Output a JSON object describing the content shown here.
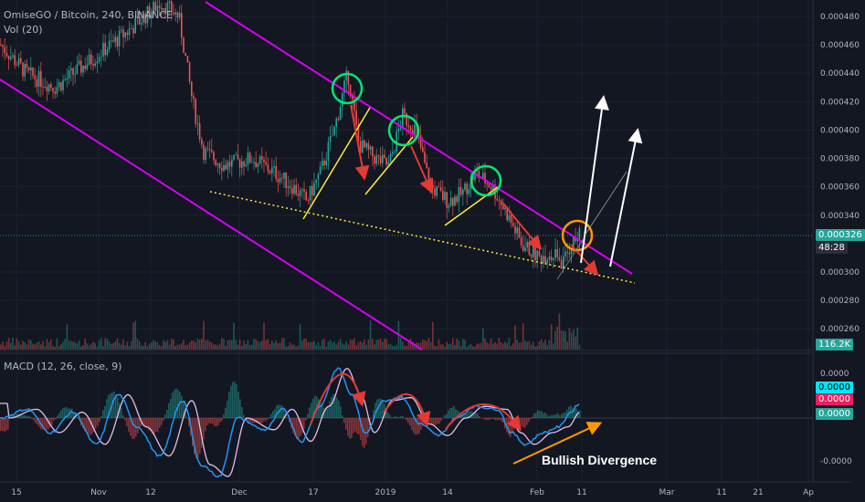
{
  "header": {
    "symbol_line": "OmiseGO / Bitcoin, 240, BINANCE",
    "volume_line": "Vol (20)"
  },
  "macd_legend": "MACD (12, 26, close, 9)",
  "price_axis": {
    "labels": [
      "0.000480",
      "0.000460",
      "0.000440",
      "0.000420",
      "0.000400",
      "0.000380",
      "0.000360",
      "0.000340",
      "0.000300",
      "0.000280",
      "0.000260"
    ],
    "last_price": "0.000326",
    "countdown": "48:28",
    "volume_tag": "116.2K"
  },
  "macd_axis": {
    "labels": [
      "0.0000",
      "-0.0000"
    ],
    "tags": [
      "0.0000",
      "0.0000",
      "0.0000"
    ]
  },
  "time_axis": {
    "labels": [
      "15",
      "Nov",
      "12",
      "Dec",
      "17",
      "2019",
      "14",
      "Feb",
      "11",
      "Mar",
      "11",
      "21",
      "Ap"
    ]
  },
  "annotation": {
    "text": "Bullish Divergence"
  },
  "colors": {
    "background": "#131722",
    "channel": "#d500f9",
    "support": "#ffeb3b",
    "highlight_circle": "#00e676",
    "breakout_circle": "#ff9800",
    "down_arrow": "#e53935",
    "up_arrow": "#ffffff",
    "macd_line": "#2196f3",
    "signal_line": "#e1bee7",
    "up_candle": "#26a69a",
    "down_candle": "#ef5350"
  },
  "chart_data": {
    "type": "candlestick",
    "title": "OmiseGO / Bitcoin, 240, BINANCE",
    "price_range": [
      0.00025,
      0.00049
    ],
    "price_path": [
      [
        0,
        0.00046
      ],
      [
        28,
        0.00044
      ],
      [
        60,
        0.00043
      ],
      [
        100,
        0.00045
      ],
      [
        140,
        0.00047
      ],
      [
        175,
        0.00049
      ],
      [
        195,
        0.00048
      ],
      [
        210,
        0.00042
      ],
      [
        222,
        0.000385
      ],
      [
        245,
        0.000375
      ],
      [
        275,
        0.00038
      ],
      [
        300,
        0.00037
      ],
      [
        320,
        0.00036
      ],
      [
        335,
        0.00035
      ],
      [
        350,
        0.00037
      ],
      [
        365,
        0.0004
      ],
      [
        380,
        0.00044
      ],
      [
        392,
        0.00039
      ],
      [
        410,
        0.00038
      ],
      [
        425,
        0.000375
      ],
      [
        440,
        0.00041
      ],
      [
        455,
        0.0004
      ],
      [
        470,
        0.00036
      ],
      [
        490,
        0.00035
      ],
      [
        505,
        0.000355
      ],
      [
        520,
        0.00037
      ],
      [
        538,
        0.00036
      ],
      [
        555,
        0.00034
      ],
      [
        570,
        0.00032
      ],
      [
        590,
        0.00031
      ],
      [
        605,
        0.000315
      ],
      [
        615,
        0.000305
      ],
      [
        625,
        0.00032
      ],
      [
        634,
        0.000326
      ]
    ],
    "macd_path": [
      [
        0,
        0
      ],
      [
        30,
        0.3
      ],
      [
        55,
        -0.5
      ],
      [
        80,
        0.2
      ],
      [
        105,
        -0.9
      ],
      [
        130,
        0.8
      ],
      [
        150,
        -0.3
      ],
      [
        175,
        -1.3
      ],
      [
        200,
        0.6
      ],
      [
        220,
        -1.6
      ],
      [
        240,
        -2.0
      ],
      [
        260,
        0.0
      ],
      [
        290,
        -0.4
      ],
      [
        310,
        0.3
      ],
      [
        330,
        -0.8
      ],
      [
        350,
        0.4
      ],
      [
        370,
        1.7
      ],
      [
        385,
        0.8
      ],
      [
        400,
        -0.5
      ],
      [
        420,
        0.6
      ],
      [
        440,
        0.7
      ],
      [
        460,
        -0.2
      ],
      [
        480,
        -0.6
      ],
      [
        500,
        0.0
      ],
      [
        520,
        0.4
      ],
      [
        545,
        0.3
      ],
      [
        560,
        -0.5
      ],
      [
        575,
        -0.9
      ],
      [
        595,
        -0.5
      ],
      [
        612,
        -0.3
      ],
      [
        625,
        0.2
      ],
      [
        634,
        0.5
      ]
    ]
  }
}
